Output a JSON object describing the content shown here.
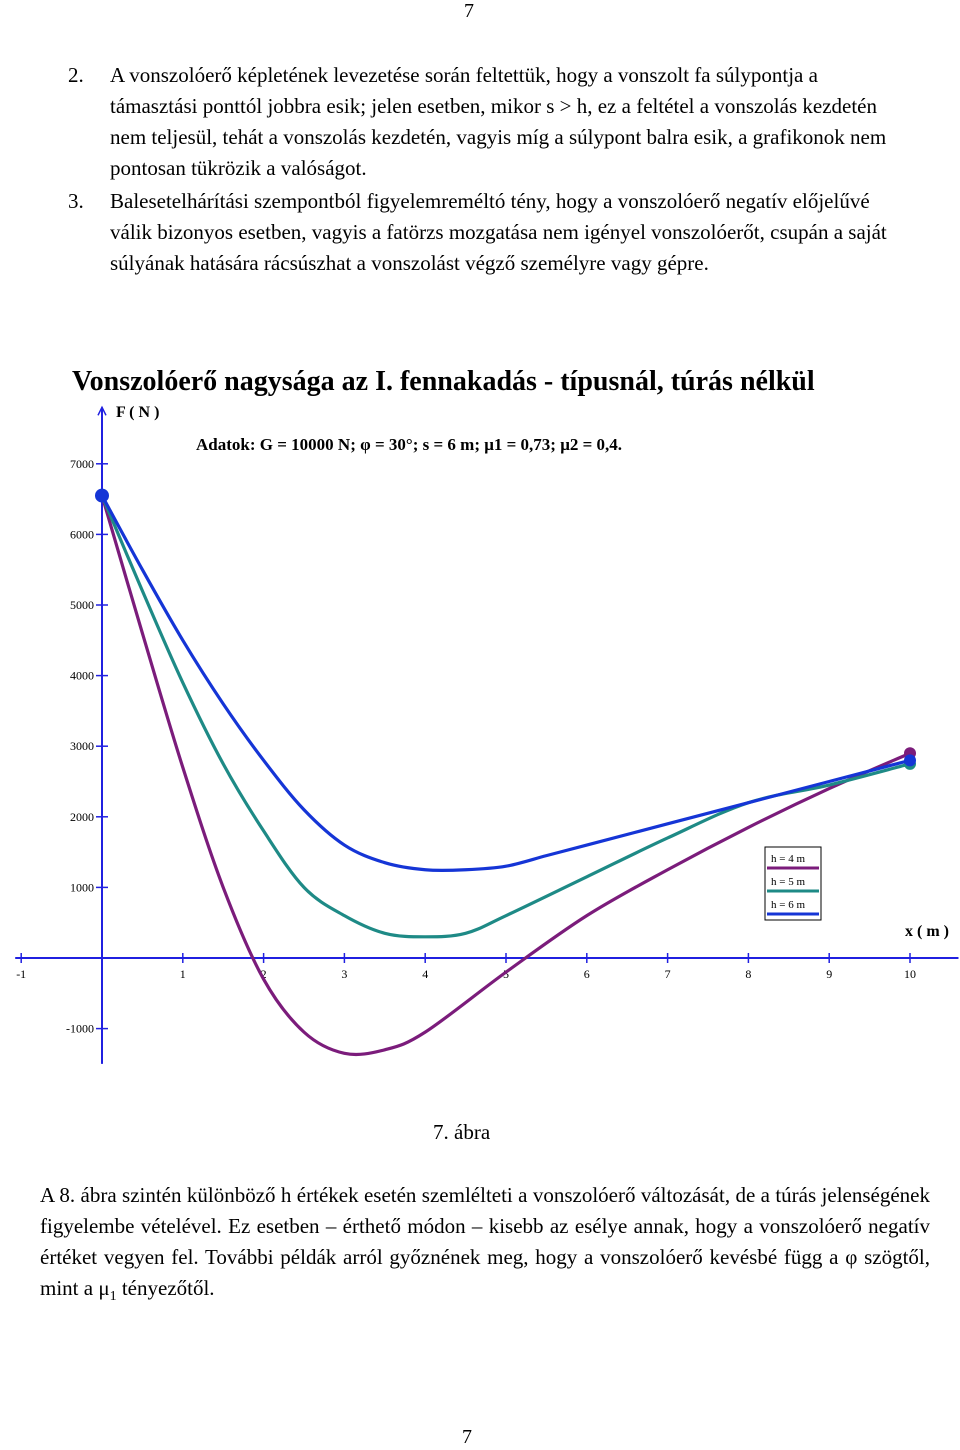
{
  "page_number": "7",
  "items": [
    {
      "num": "2.",
      "text": "A vonszolóerő képletének levezetése során feltettük, hogy a vonszolt fa súlypontja a támasztási ponttól jobbra esik; jelen esetben, mikor s > h, ez a feltétel a vonszolás kezdetén nem teljesül, tehát a vonszolás kezdetén, vagyis míg a súlypont balra esik, a grafikonok nem pontosan tükrözik a valóságot."
    },
    {
      "num": "3.",
      "text": "Balesetelhárítási szempontból figyelemreméltó tény, hogy a vonszolóerő negatív előjelűvé válik bizonyos esetben, vagyis a fatörzs mozgatása nem igényel vonszolóerőt, csupán a saját súlyának hatására rácsúszhat a vonszolást végző személyre vagy gépre."
    }
  ],
  "chart_title": "Vonszolóerő nagysága az I. fennakadás - típusnál, túrás nélkül",
  "chart_data": {
    "type": "line",
    "ylabel": "F ( N )",
    "xlabel": "x ( m )",
    "annotation": "Adatok: G = 10000 N; φ = 30°; s = 6 m; μ1 = 0,73; μ2 = 0,4.",
    "xlim": [
      -1,
      10.6
    ],
    "ylim": [
      -1500,
      7800
    ],
    "x_ticks": [
      -1,
      1,
      2,
      3,
      4,
      5,
      6,
      7,
      8,
      9,
      10
    ],
    "y_ticks": [
      7000,
      6000,
      5000,
      4000,
      3000,
      2000,
      1000,
      -1000
    ],
    "legend_position": "lower-right",
    "series": [
      {
        "name": "h = 4 m",
        "color": "#7b1c7b",
        "x": [
          0,
          0.5,
          1,
          1.5,
          2,
          2.5,
          3,
          3.5,
          4,
          5,
          6,
          7,
          8,
          9,
          10
        ],
        "y": [
          6550,
          4600,
          2700,
          1000,
          -300,
          -1050,
          -1350,
          -1300,
          -1050,
          -200,
          600,
          1250,
          1850,
          2400,
          2900
        ]
      },
      {
        "name": "h = 5 m",
        "color": "#1e8a86",
        "x": [
          0,
          0.5,
          1,
          1.5,
          2,
          2.5,
          3,
          3.5,
          4,
          4.5,
          5,
          6,
          7,
          8,
          9,
          10
        ],
        "y": [
          6550,
          5200,
          3900,
          2750,
          1800,
          1000,
          600,
          350,
          300,
          350,
          600,
          1150,
          1700,
          2200,
          2450,
          2750
        ]
      },
      {
        "name": "h = 6 m",
        "color": "#1535d6",
        "x": [
          0,
          0.5,
          1,
          1.5,
          2,
          2.5,
          3,
          3.5,
          4,
          4.5,
          5,
          5.5,
          6,
          7,
          8,
          9,
          10
        ],
        "y": [
          6550,
          5500,
          4500,
          3600,
          2800,
          2100,
          1600,
          1350,
          1250,
          1250,
          1300,
          1450,
          1600,
          1900,
          2200,
          2500,
          2800
        ]
      }
    ]
  },
  "figure_caption": "7. ábra",
  "after_text_a": "A 8. ábra szintén különböző h értékek esetén szemlélteti a vonszolóerő változását, de a túrás jelenségének figyelembe vételével. Ez esetben – érthető módon – kisebb az esélye annak, hogy a vonszolóerő negatív értéket vegyen fel. További példák arról győznének meg, hogy a vonszolóerő kevésbé függ a φ szögtől, mint a μ",
  "after_sub": "1",
  "after_text_b": " tényezőtől.",
  "bottom_page_number": "7"
}
